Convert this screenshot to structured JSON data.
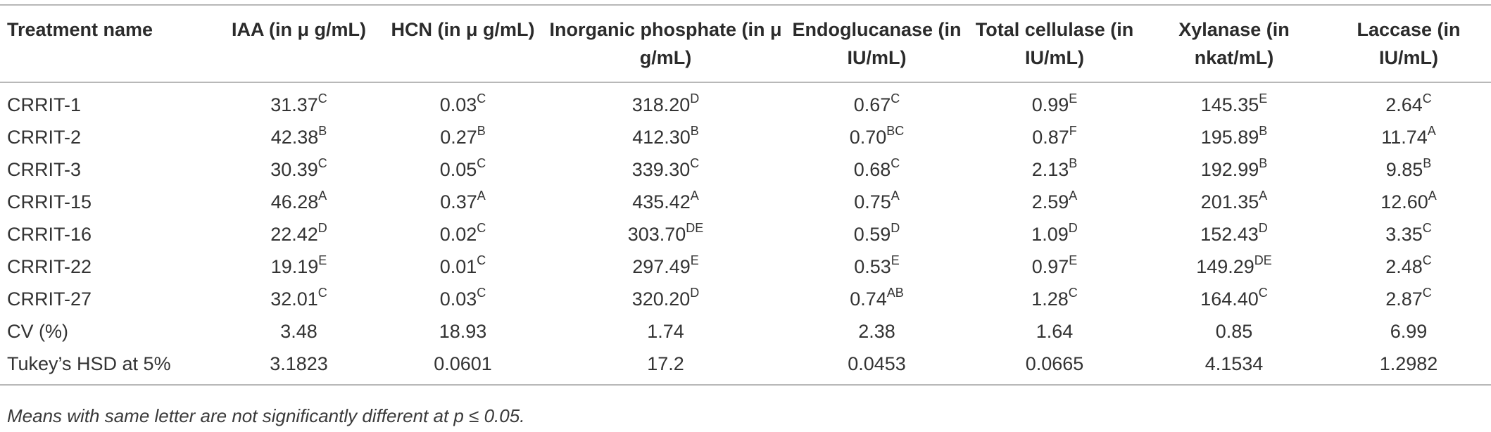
{
  "table": {
    "headers": [
      "Treatment name",
      "IAA (in μ g/mL)",
      "HCN (in μ g/mL)",
      "Inorganic phosphate (in μ g/mL)",
      "Endoglucanase (in IU/mL)",
      "Total cellulase (in IU/mL)",
      "Xylanase (in nkat/mL)",
      "Laccase (in IU/mL)"
    ],
    "rows": [
      {
        "name": "CRRIT-1",
        "cells": [
          {
            "v": "31.37",
            "s": "C"
          },
          {
            "v": "0.03",
            "s": "C"
          },
          {
            "v": "318.20",
            "s": "D"
          },
          {
            "v": "0.67",
            "s": "C"
          },
          {
            "v": "0.99",
            "s": "E"
          },
          {
            "v": "145.35",
            "s": "E"
          },
          {
            "v": "2.64",
            "s": "C"
          }
        ]
      },
      {
        "name": "CRRIT-2",
        "cells": [
          {
            "v": "42.38",
            "s": "B"
          },
          {
            "v": "0.27",
            "s": "B"
          },
          {
            "v": "412.30",
            "s": "B"
          },
          {
            "v": "0.70",
            "s": "BC"
          },
          {
            "v": "0.87",
            "s": "F"
          },
          {
            "v": "195.89",
            "s": "B"
          },
          {
            "v": "11.74",
            "s": "A"
          }
        ]
      },
      {
        "name": "CRRIT-3",
        "cells": [
          {
            "v": "30.39",
            "s": "C"
          },
          {
            "v": "0.05",
            "s": "C"
          },
          {
            "v": "339.30",
            "s": "C"
          },
          {
            "v": "0.68",
            "s": "C"
          },
          {
            "v": "2.13",
            "s": "B"
          },
          {
            "v": "192.99",
            "s": "B"
          },
          {
            "v": "9.85",
            "s": "B"
          }
        ]
      },
      {
        "name": "CRRIT-15",
        "cells": [
          {
            "v": "46.28",
            "s": "A"
          },
          {
            "v": "0.37",
            "s": "A"
          },
          {
            "v": "435.42",
            "s": "A"
          },
          {
            "v": "0.75",
            "s": "A"
          },
          {
            "v": "2.59",
            "s": "A"
          },
          {
            "v": "201.35",
            "s": "A"
          },
          {
            "v": "12.60",
            "s": "A"
          }
        ]
      },
      {
        "name": "CRRIT-16",
        "cells": [
          {
            "v": "22.42",
            "s": "D"
          },
          {
            "v": "0.02",
            "s": "C"
          },
          {
            "v": "303.70",
            "s": "DE"
          },
          {
            "v": "0.59",
            "s": "D"
          },
          {
            "v": "1.09",
            "s": "D"
          },
          {
            "v": "152.43",
            "s": "D"
          },
          {
            "v": "3.35",
            "s": "C"
          }
        ]
      },
      {
        "name": "CRRIT-22",
        "cells": [
          {
            "v": "19.19",
            "s": "E"
          },
          {
            "v": "0.01",
            "s": "C"
          },
          {
            "v": "297.49",
            "s": "E"
          },
          {
            "v": "0.53",
            "s": "E"
          },
          {
            "v": "0.97",
            "s": "E"
          },
          {
            "v": "149.29",
            "s": "DE"
          },
          {
            "v": "2.48",
            "s": "C"
          }
        ]
      },
      {
        "name": "CRRIT-27",
        "cells": [
          {
            "v": "32.01",
            "s": "C"
          },
          {
            "v": "0.03",
            "s": "C"
          },
          {
            "v": "320.20",
            "s": "D"
          },
          {
            "v": "0.74",
            "s": "AB"
          },
          {
            "v": "1.28",
            "s": "C"
          },
          {
            "v": "164.40",
            "s": "C"
          },
          {
            "v": "2.87",
            "s": "C"
          }
        ]
      },
      {
        "name": "CV (%)",
        "cells": [
          {
            "v": "3.48",
            "s": ""
          },
          {
            "v": "18.93",
            "s": ""
          },
          {
            "v": "1.74",
            "s": ""
          },
          {
            "v": "2.38",
            "s": ""
          },
          {
            "v": "1.64",
            "s": ""
          },
          {
            "v": "0.85",
            "s": ""
          },
          {
            "v": "6.99",
            "s": ""
          }
        ]
      },
      {
        "name": "Tukey’s HSD at 5%",
        "cells": [
          {
            "v": "3.1823",
            "s": ""
          },
          {
            "v": "0.0601",
            "s": ""
          },
          {
            "v": "17.2",
            "s": ""
          },
          {
            "v": "0.0453",
            "s": ""
          },
          {
            "v": "0.0665",
            "s": ""
          },
          {
            "v": "4.1534",
            "s": ""
          },
          {
            "v": "1.2982",
            "s": ""
          }
        ]
      }
    ]
  },
  "footnote": "Means with same letter are not significantly different at p ≤ 0.05."
}
